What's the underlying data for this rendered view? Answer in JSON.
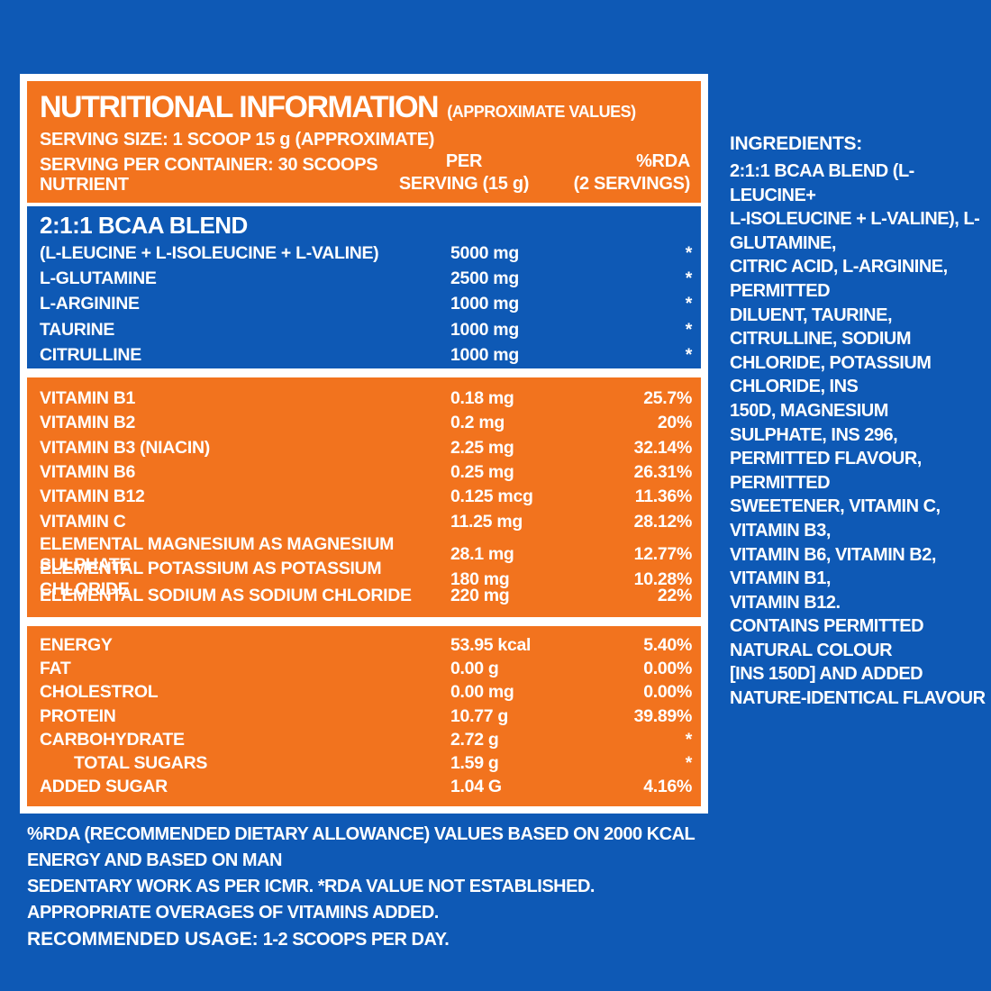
{
  "colors": {
    "background_blue": "#0E59B5",
    "accent_orange": "#F2731E",
    "panel_border_white": "#FFFFFF",
    "text_white": "#FFFFFF"
  },
  "panel": {
    "header": {
      "title": "NUTRITIONAL INFORMATION",
      "title_suffix": "(APPROXIMATE VALUES)",
      "serving_size": "SERVING SIZE: 1 SCOOP 15 g (APPROXIMATE)",
      "serving_per_container": "SERVING PER CONTAINER: 30 SCOOPS",
      "columns": {
        "nutrient": "NUTRIENT",
        "per_line1": "PER",
        "per_line2": "SERVING (15 g)",
        "rda_line1": "%RDA",
        "rda_line2": "(2 SERVINGS)"
      }
    },
    "bcaa_section": {
      "title": "2:1:1 BCAA BLEND",
      "rows": [
        {
          "nutrient": "(L-LEUCINE + L-ISOLEUCINE + L-VALINE)",
          "per_serving": "5000 mg",
          "rda": "*"
        },
        {
          "nutrient": "L-GLUTAMINE",
          "per_serving": "2500 mg",
          "rda": "*"
        },
        {
          "nutrient": "L-ARGININE",
          "per_serving": "1000 mg",
          "rda": "*"
        },
        {
          "nutrient": "TAURINE",
          "per_serving": "1000 mg",
          "rda": "*"
        },
        {
          "nutrient": "CITRULLINE",
          "per_serving": "1000 mg",
          "rda": "*"
        }
      ]
    },
    "vitamins_section": {
      "rows": [
        {
          "nutrient": "VITAMIN B1",
          "per_serving": "0.18 mg",
          "rda": "25.7%"
        },
        {
          "nutrient": "VITAMIN B2",
          "per_serving": "0.2 mg",
          "rda": "20%"
        },
        {
          "nutrient": "VITAMIN B3 (NIACIN)",
          "per_serving": "2.25 mg",
          "rda": "32.14%"
        },
        {
          "nutrient": "VITAMIN B6",
          "per_serving": "0.25 mg",
          "rda": "26.31%"
        },
        {
          "nutrient": "VITAMIN B12",
          "per_serving": "0.125 mcg",
          "rda": "11.36%"
        },
        {
          "nutrient": "VITAMIN C",
          "per_serving": "11.25 mg",
          "rda": "28.12%"
        },
        {
          "nutrient": "ELEMENTAL MAGNESIUM AS MAGNESIUM SULPHATE",
          "per_serving": "28.1 mg",
          "rda": "12.77%"
        },
        {
          "nutrient": "ELEMENTAL POTASSIUM AS POTASSIUM CHLORIDE",
          "per_serving": "180 mg",
          "rda": "10.28%"
        },
        {
          "nutrient": "ELEMENTAL SODIUM AS SODIUM CHLORIDE",
          "per_serving": "220 mg",
          "rda": "22%"
        }
      ]
    },
    "energy_section": {
      "rows": [
        {
          "nutrient": "ENERGY",
          "per_serving": "53.95 kcal",
          "rda": "5.40%"
        },
        {
          "nutrient": "FAT",
          "per_serving": "0.00 g",
          "rda": "0.00%"
        },
        {
          "nutrient": "CHOLESTROL",
          "per_serving": "0.00 mg",
          "rda": "0.00%"
        },
        {
          "nutrient": "PROTEIN",
          "per_serving": "10.77 g",
          "rda": "39.89%"
        },
        {
          "nutrient": "CARBOHYDRATE",
          "per_serving": "2.72 g",
          "rda": "*"
        },
        {
          "nutrient": "TOTAL SUGARS",
          "per_serving": "1.59 g",
          "rda": "*"
        },
        {
          "nutrient": "ADDED SUGAR",
          "per_serving": "1.04 G",
          "rda": "4.16%"
        }
      ]
    }
  },
  "ingredients": {
    "heading": "INGREDIENTS:",
    "body": "2:1:1 BCAA BLEND (L-LEUCINE+\nL-ISOLEUCINE + L-VALINE), L-GLUTAMINE,\nCITRIC ACID, L-ARGININE, PERMITTED\nDILUENT, TAURINE, CITRULLINE, SODIUM\nCHLORIDE, POTASSIUM CHLORIDE, INS\n150D, MAGNESIUM SULPHATE, INS 296,\nPERMITTED FLAVOUR, PERMITTED\nSWEETENER, VITAMIN C, VITAMIN B3,\nVITAMIN B6, VITAMIN B2, VITAMIN B1,\nVITAMIN B12.\nCONTAINS PERMITTED NATURAL COLOUR\n[INS 150D] AND ADDED\nNATURE-IDENTICAL FLAVOUR"
  },
  "footnotes": {
    "rda_note_line1": "%RDA (RECOMMENDED DIETARY ALLOWANCE) VALUES BASED ON 2000 KCAL ENERGY AND BASED ON MAN",
    "rda_note_line2": "SEDENTARY WORK AS PER ICMR. *RDA VALUE NOT ESTABLISHED.",
    "overages_note": "APPROPRIATE OVERAGES OF VITAMINS ADDED.",
    "usage_label": "RECOMMENDED USAGE:",
    "usage_text": "1-2 SCOOPS PER DAY."
  }
}
